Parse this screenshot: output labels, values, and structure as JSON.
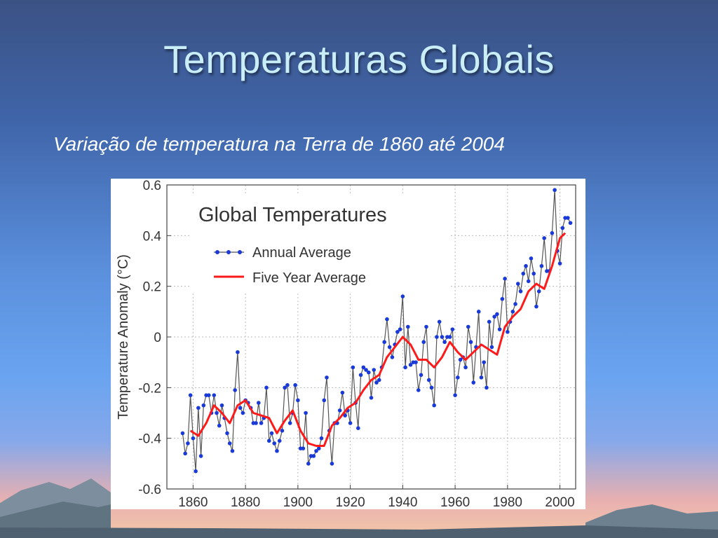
{
  "slide": {
    "title": "Temperaturas Globais",
    "subtitle": "Variação de temperatura na Terra de 1860 até 2004"
  },
  "colors": {
    "annual_line": "#555555",
    "annual_marker": "#1a3ad8",
    "five_year": "#ff1a1a"
  },
  "chart_data": {
    "type": "line",
    "title": "Global Temperatures",
    "ylabel": "Temperature Anomaly (°C)",
    "xlabel": "",
    "xlim": [
      1850,
      2006
    ],
    "ylim": [
      -0.6,
      0.6
    ],
    "xticks": [
      1860,
      1880,
      1900,
      1920,
      1940,
      1960,
      1980,
      2000
    ],
    "yticks": [
      0.6,
      0.4,
      0.2,
      0,
      -0.2,
      -0.4,
      -0.6
    ],
    "ytick_labels": [
      "0.6",
      "0.4",
      "0.2",
      "0",
      "-0.2",
      "-0.4",
      "-0.6"
    ],
    "grid": true,
    "legend_position": "top-left",
    "series": [
      {
        "name": "Annual Average",
        "x": [
          1856,
          1857,
          1858,
          1859,
          1860,
          1861,
          1862,
          1863,
          1864,
          1865,
          1866,
          1867,
          1868,
          1869,
          1870,
          1871,
          1872,
          1873,
          1874,
          1875,
          1876,
          1877,
          1878,
          1879,
          1880,
          1881,
          1882,
          1883,
          1884,
          1885,
          1886,
          1887,
          1888,
          1889,
          1890,
          1891,
          1892,
          1893,
          1894,
          1895,
          1896,
          1897,
          1898,
          1899,
          1900,
          1901,
          1902,
          1903,
          1904,
          1905,
          1906,
          1907,
          1908,
          1909,
          1910,
          1911,
          1912,
          1913,
          1914,
          1915,
          1916,
          1917,
          1918,
          1919,
          1920,
          1921,
          1922,
          1923,
          1924,
          1925,
          1926,
          1927,
          1928,
          1929,
          1930,
          1931,
          1932,
          1933,
          1934,
          1935,
          1936,
          1937,
          1938,
          1939,
          1940,
          1941,
          1942,
          1943,
          1944,
          1945,
          1946,
          1947,
          1948,
          1949,
          1950,
          1951,
          1952,
          1953,
          1954,
          1955,
          1956,
          1957,
          1958,
          1959,
          1960,
          1961,
          1962,
          1963,
          1964,
          1965,
          1966,
          1967,
          1968,
          1969,
          1970,
          1971,
          1972,
          1973,
          1974,
          1975,
          1976,
          1977,
          1978,
          1979,
          1980,
          1981,
          1982,
          1983,
          1984,
          1985,
          1986,
          1987,
          1988,
          1989,
          1990,
          1991,
          1992,
          1993,
          1994,
          1995,
          1996,
          1997,
          1998,
          1999,
          2000,
          2001,
          2002,
          2003,
          2004
        ],
        "values": [
          -0.38,
          -0.46,
          -0.42,
          -0.23,
          -0.4,
          -0.53,
          -0.28,
          -0.47,
          -0.27,
          -0.23,
          -0.23,
          -0.3,
          -0.23,
          -0.3,
          -0.35,
          -0.27,
          -0.32,
          -0.38,
          -0.42,
          -0.45,
          -0.21,
          -0.06,
          -0.28,
          -0.3,
          -0.25,
          -0.26,
          -0.28,
          -0.34,
          -0.34,
          -0.26,
          -0.34,
          -0.32,
          -0.2,
          -0.41,
          -0.38,
          -0.42,
          -0.45,
          -0.41,
          -0.37,
          -0.2,
          -0.19,
          -0.34,
          -0.3,
          -0.19,
          -0.25,
          -0.44,
          -0.44,
          -0.3,
          -0.5,
          -0.47,
          -0.47,
          -0.45,
          -0.44,
          -0.4,
          -0.25,
          -0.16,
          -0.37,
          -0.5,
          -0.34,
          -0.34,
          -0.29,
          -0.22,
          -0.31,
          -0.29,
          -0.34,
          -0.12,
          -0.26,
          -0.36,
          -0.15,
          -0.12,
          -0.13,
          -0.14,
          -0.24,
          -0.13,
          -0.18,
          -0.17,
          -0.12,
          -0.02,
          0.07,
          -0.04,
          -0.08,
          -0.03,
          0.02,
          0.03,
          0.16,
          -0.12,
          0.04,
          -0.11,
          -0.1,
          -0.1,
          -0.21,
          -0.15,
          -0.02,
          0.04,
          -0.17,
          -0.2,
          -0.27,
          0.0,
          0.06,
          0.0,
          -0.02,
          0.0,
          0.0,
          0.03,
          -0.23,
          -0.16,
          -0.09,
          -0.08,
          -0.12,
          0.04,
          -0.02,
          -0.18,
          -0.04,
          0.1,
          -0.16,
          -0.1,
          -0.2,
          0.06,
          -0.04,
          0.08,
          0.09,
          0.03,
          0.15,
          0.23,
          0.02,
          0.06,
          0.1,
          0.13,
          0.21,
          0.18,
          0.25,
          0.28,
          0.22,
          0.31,
          0.25,
          0.12,
          0.18,
          0.28,
          0.39,
          0.26,
          0.26,
          0.41,
          0.58,
          0.34,
          0.29,
          0.43,
          0.47,
          0.47,
          0.45
        ]
      },
      {
        "name": "Five Year Average",
        "x": [
          1859,
          1862,
          1865,
          1868,
          1871,
          1874,
          1877,
          1880,
          1883,
          1886,
          1889,
          1892,
          1895,
          1898,
          1901,
          1904,
          1907,
          1910,
          1913,
          1916,
          1919,
          1922,
          1925,
          1928,
          1931,
          1934,
          1937,
          1940,
          1943,
          1946,
          1949,
          1952,
          1955,
          1958,
          1961,
          1964,
          1967,
          1970,
          1973,
          1976,
          1979,
          1982,
          1985,
          1988,
          1991,
          1994,
          1997,
          2000,
          2002
        ],
        "values": [
          -0.37,
          -0.39,
          -0.34,
          -0.27,
          -0.3,
          -0.34,
          -0.27,
          -0.25,
          -0.3,
          -0.31,
          -0.32,
          -0.38,
          -0.33,
          -0.29,
          -0.37,
          -0.42,
          -0.43,
          -0.43,
          -0.35,
          -0.32,
          -0.28,
          -0.26,
          -0.21,
          -0.17,
          -0.15,
          -0.08,
          -0.04,
          0.0,
          -0.03,
          -0.09,
          -0.09,
          -0.12,
          -0.08,
          -0.02,
          -0.06,
          -0.09,
          -0.06,
          -0.03,
          -0.05,
          -0.07,
          0.04,
          0.08,
          0.11,
          0.18,
          0.21,
          0.19,
          0.28,
          0.39,
          0.41
        ]
      }
    ]
  }
}
